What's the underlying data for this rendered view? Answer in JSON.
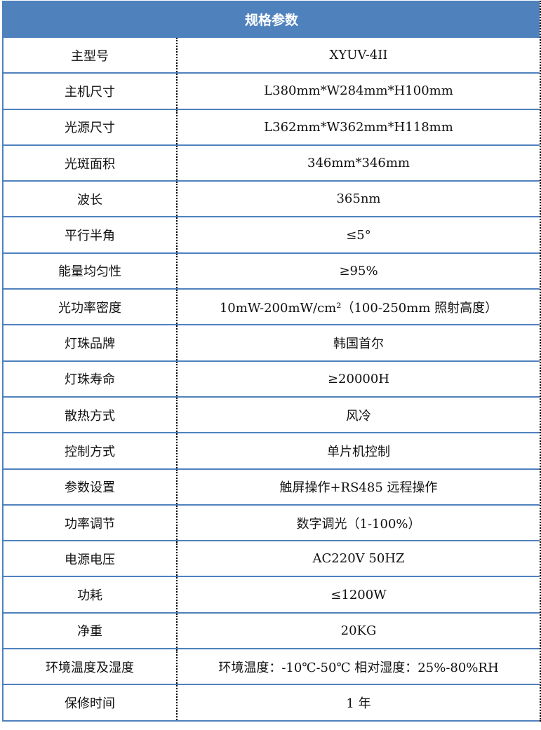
{
  "header": {
    "title": "规格参数"
  },
  "rows": [
    {
      "label": "主型号",
      "value": "XYUV-4II"
    },
    {
      "label": "主机尺寸",
      "value": "L380mm*W284mm*H100mm"
    },
    {
      "label": "光源尺寸",
      "value": "L362mm*W362mm*H118mm"
    },
    {
      "label": "光斑面积",
      "value": "346mm*346mm"
    },
    {
      "label": "波长",
      "value": "365nm"
    },
    {
      "label": "平行半角",
      "value": "≤5°"
    },
    {
      "label": "能量均匀性",
      "value": "≥95%"
    },
    {
      "label": "光功率密度",
      "value": "10mW-200mW/cm²（100-250mm 照射高度）"
    },
    {
      "label": "灯珠品牌",
      "value": "韩国首尔"
    },
    {
      "label": "灯珠寿命",
      "value": "≥20000H"
    },
    {
      "label": "散热方式",
      "value": "风冷"
    },
    {
      "label": "控制方式",
      "value": "单片机控制"
    },
    {
      "label": "参数设置",
      "value": "触屏操作+RS485 远程操作"
    },
    {
      "label": "功率调节",
      "value": "数字调光（1-100%）"
    },
    {
      "label": "电源电压",
      "value": "AC220V 50HZ"
    },
    {
      "label": "功耗",
      "value": "≤1200W"
    },
    {
      "label": "净重",
      "value": "20KG"
    },
    {
      "label": "环境温度及湿度",
      "value": "环境温度：-10℃-50℃ 相对湿度：25%-80%RH"
    },
    {
      "label": "保修时间",
      "value": "1 年"
    }
  ]
}
